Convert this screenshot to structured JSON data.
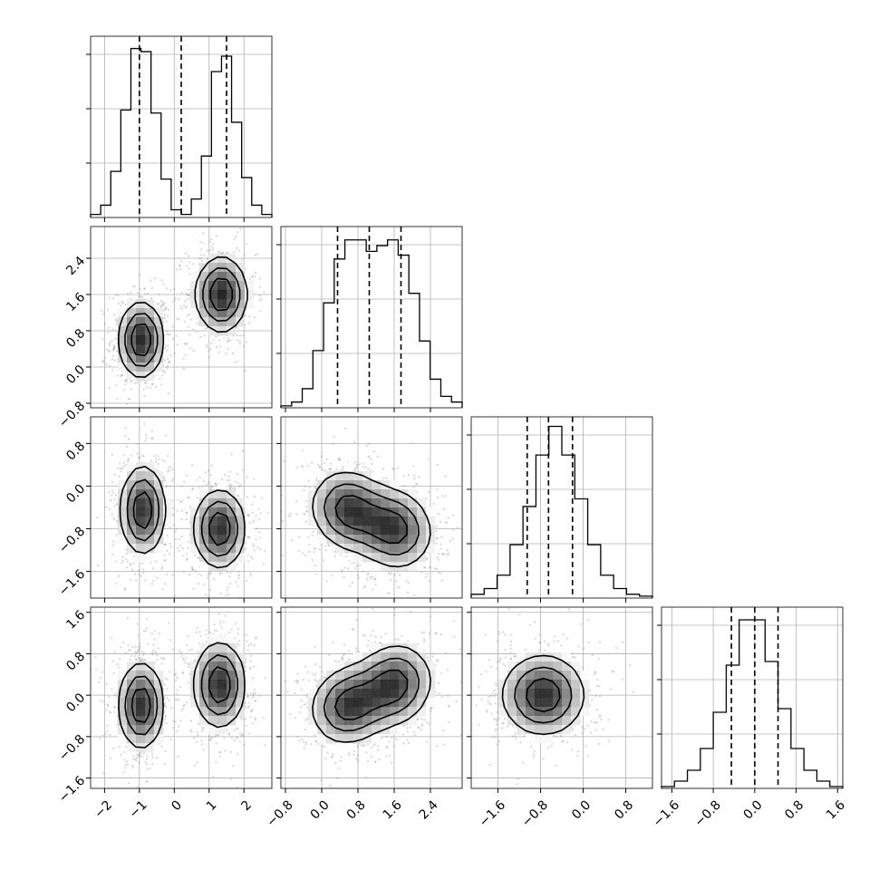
{
  "chart_data": {
    "type": "corner",
    "title": "",
    "params": [
      {
        "range": [
          -2.4,
          2.8
        ],
        "ticks": [
          -2,
          -1,
          0,
          1,
          2
        ],
        "tick_labels": [
          "−2",
          "−1",
          "0",
          "1",
          "2"
        ],
        "quantiles": [
          -1.0,
          0.2,
          1.5
        ]
      },
      {
        "range": [
          -0.9,
          3.1
        ],
        "ticks": [
          -0.8,
          0.0,
          0.8,
          1.6,
          2.4
        ],
        "tick_labels": [
          "−0.8",
          "0.0",
          "0.8",
          "1.6",
          "2.4"
        ],
        "quantiles": [
          0.35,
          1.05,
          1.75
        ]
      },
      {
        "range": [
          -2.1,
          1.3
        ],
        "ticks": [
          -1.6,
          -0.8,
          0.0,
          0.8
        ],
        "tick_labels": [
          "−1.6",
          "−0.8",
          "0.0",
          "0.8"
        ],
        "quantiles": [
          -1.05,
          -0.65,
          -0.2
        ]
      },
      {
        "range": [
          -1.8,
          1.7
        ],
        "ticks": [
          -1.6,
          -0.8,
          0.0,
          0.8,
          1.6
        ],
        "tick_labels": [
          "−1.6",
          "−0.8",
          "0.0",
          "0.8",
          "1.6"
        ],
        "quantiles": [
          -0.45,
          0.0,
          0.45
        ]
      }
    ],
    "histograms": [
      {
        "param": 0,
        "bins_lo": -2.4,
        "bins_hi": 2.8,
        "counts": [
          2,
          8,
          30,
          70,
          110,
          108,
          68,
          25,
          5,
          2,
          12,
          40,
          95,
          105,
          62,
          26,
          8,
          2
        ],
        "ylim": [
          0,
          118
        ]
      },
      {
        "param": 1,
        "bins_lo": -0.9,
        "bins_hi": 3.1,
        "counts": [
          1,
          3,
          10,
          30,
          55,
          78,
          88,
          88,
          82,
          85,
          88,
          80,
          60,
          35,
          15,
          6,
          3
        ],
        "ylim": [
          0,
          95
        ]
      },
      {
        "param": 2,
        "bins_lo": -2.1,
        "bins_hi": 1.3,
        "counts": [
          2,
          5,
          12,
          28,
          48,
          75,
          90,
          75,
          52,
          28,
          12,
          5,
          2,
          1
        ],
        "ylim": [
          0,
          95
        ]
      },
      {
        "param": 3,
        "bins_lo": -1.8,
        "bins_hi": 1.7,
        "counts": [
          1,
          4,
          10,
          22,
          42,
          68,
          93,
          93,
          70,
          44,
          22,
          10,
          4,
          1
        ],
        "ylim": [
          0,
          100
        ]
      }
    ],
    "joint": [
      {
        "x": 0,
        "y": 1,
        "components": [
          {
            "mx": -0.95,
            "my": 0.6,
            "sx": 0.35,
            "sy": 0.45,
            "rho": 0
          },
          {
            "mx": 1.35,
            "my": 1.6,
            "sx": 0.4,
            "sy": 0.45,
            "rho": 0
          }
        ]
      },
      {
        "x": 0,
        "y": 2,
        "components": [
          {
            "mx": -0.9,
            "my": -0.45,
            "sx": 0.35,
            "sy": 0.45,
            "rho": 0
          },
          {
            "mx": 1.3,
            "my": -0.8,
            "sx": 0.4,
            "sy": 0.4,
            "rho": 0
          }
        ]
      },
      {
        "x": 0,
        "y": 3,
        "components": [
          {
            "mx": -0.95,
            "my": -0.2,
            "sx": 0.35,
            "sy": 0.45,
            "rho": 0
          },
          {
            "mx": 1.3,
            "my": 0.2,
            "sx": 0.4,
            "sy": 0.45,
            "rho": 0
          }
        ]
      },
      {
        "x": 1,
        "y": 2,
        "components": [
          {
            "mx": 0.6,
            "my": -0.45,
            "sx": 0.45,
            "sy": 0.4,
            "rho": -0.1
          },
          {
            "mx": 1.6,
            "my": -0.8,
            "sx": 0.45,
            "sy": 0.4,
            "rho": -0.1
          }
        ]
      },
      {
        "x": 1,
        "y": 3,
        "components": [
          {
            "mx": 0.6,
            "my": -0.2,
            "sx": 0.45,
            "sy": 0.4,
            "rho": 0.1
          },
          {
            "mx": 1.6,
            "my": 0.2,
            "sx": 0.45,
            "sy": 0.42,
            "rho": 0.1
          }
        ]
      },
      {
        "x": 2,
        "y": 3,
        "components": [
          {
            "mx": -0.75,
            "my": 0.0,
            "sx": 0.42,
            "sy": 0.42,
            "rho": 0
          }
        ]
      }
    ],
    "contour_levels": [
      0.75,
      0.45,
      0.2
    ],
    "grid": true,
    "legend": ""
  }
}
